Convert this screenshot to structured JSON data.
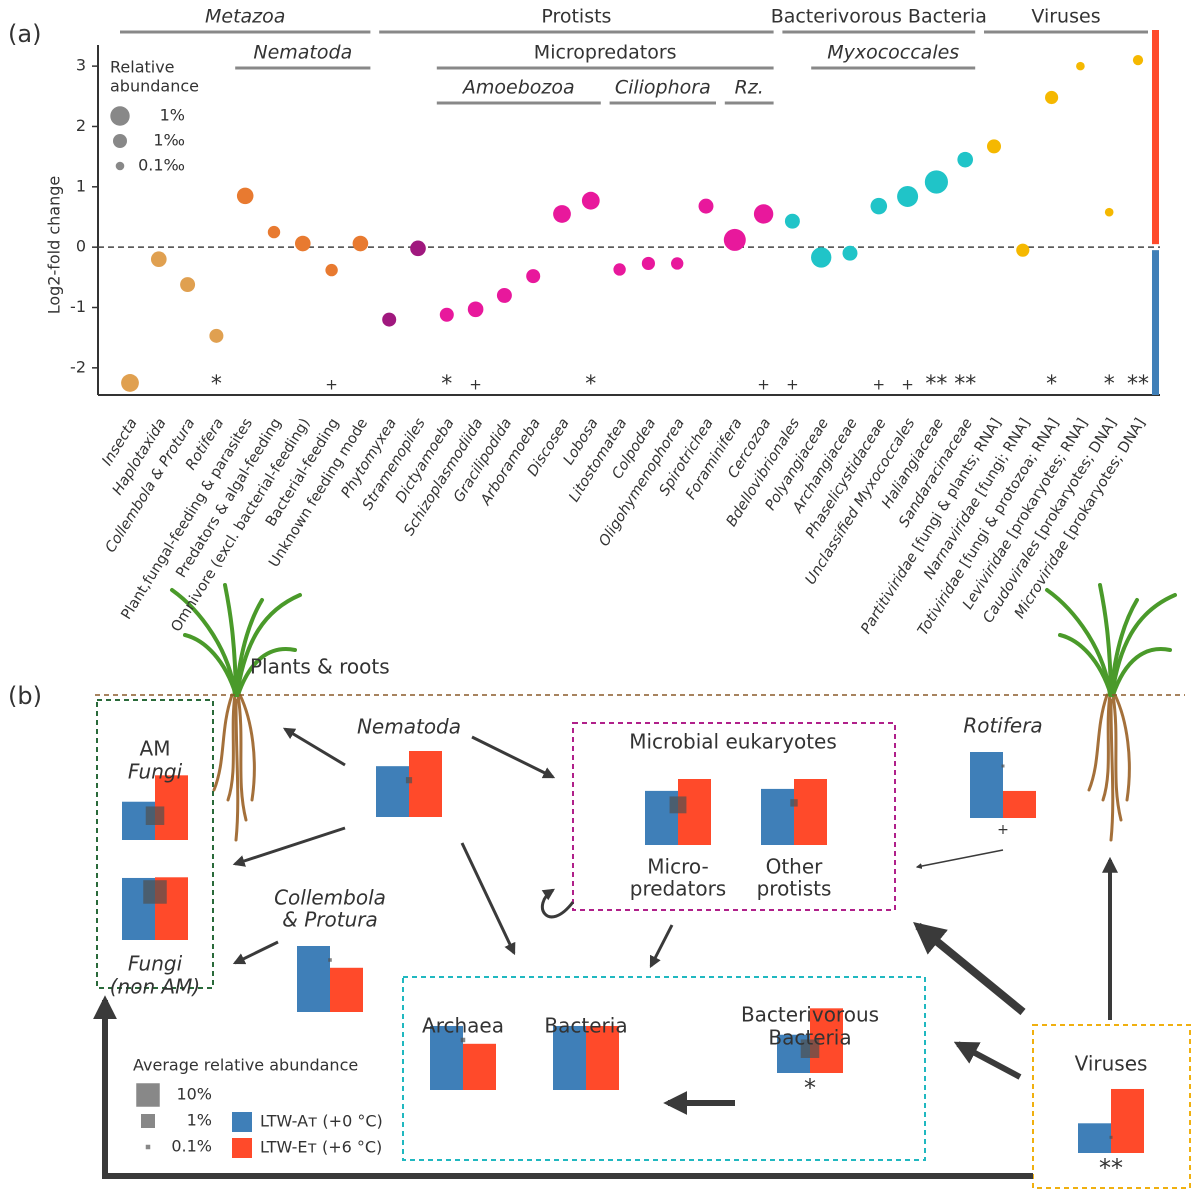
{
  "chart_data": {
    "type": "bubble",
    "panel_label": "(a)",
    "y_label": "Log2-fold change",
    "categories": [
      "Insecta",
      "Haplotaxida",
      "Collembola & Protura",
      "Rotifera",
      "Plant,fungal-feeding & parasites",
      "Predators & algal-feeding",
      "Omnivore (excl. bacterial-feeding)",
      "Bacterial-feeding",
      "Unknown feeding mode",
      "Phytomyxea",
      "Stramenopiles",
      "Dictyamoeba",
      "Schizoplasmodiida",
      "Gracilipodida",
      "Arboramoeba",
      "Discosea",
      "Lobosa",
      "Litostomatea",
      "Colpodea",
      "Oligohymenophorea",
      "Spirotrichea",
      "Foraminifera",
      "Cercozoa",
      "Bdellovibrionales",
      "Polyangiaceae",
      "Archangiaceae",
      "Phaselicystidaceae",
      "Unclassified Myxococcales",
      "Haliangiaceae",
      "Sandaracinaceae",
      "Partitiviridae [fungi & plants; RNA]",
      "Narnaviridae [fungi; RNA]",
      "Totiviridae [fungi & protozoa; RNA]",
      "Leviviridae [prokaryotes; RNA]",
      "Caudovirales [prokaryotes; DNA]",
      "Microviridae [prokaryotes; DNA]"
    ],
    "italic": [
      true,
      true,
      true,
      true,
      false,
      false,
      false,
      false,
      false,
      true,
      true,
      true,
      true,
      true,
      true,
      true,
      true,
      true,
      true,
      true,
      true,
      true,
      true,
      true,
      true,
      true,
      true,
      true,
      true,
      true,
      true,
      true,
      true,
      true,
      true,
      true
    ],
    "values": [
      -2.25,
      -0.2,
      -0.62,
      -1.47,
      0.85,
      0.25,
      0.06,
      -0.38,
      0.06,
      -1.2,
      -0.02,
      -1.12,
      -1.03,
      -0.8,
      -0.48,
      0.55,
      0.77,
      -0.37,
      -0.27,
      -0.27,
      0.68,
      0.12,
      0.55,
      0.43,
      -0.17,
      -0.1,
      0.68,
      0.84,
      1.08,
      1.45,
      1.67,
      -0.05,
      2.48,
      3.0,
      0.58,
      3.1
    ],
    "sizes": [
      0.5,
      0.2,
      0.15,
      0.1,
      0.3,
      0.05,
      0.2,
      0.05,
      0.2,
      0.1,
      0.2,
      0.1,
      0.2,
      0.15,
      0.1,
      0.5,
      0.5,
      0.05,
      0.07,
      0.05,
      0.15,
      3,
      1,
      0.15,
      1.5,
      0.15,
      0.3,
      2,
      5,
      0.2,
      0.1,
      0.07,
      0.07,
      0.01,
      0.01,
      0.02
    ],
    "colors": [
      "#e0a050",
      "#e0a050",
      "#e0a050",
      "#e0a050",
      "#e87a30",
      "#e87a30",
      "#e87a30",
      "#e87a30",
      "#e87a30",
      "#a0187e",
      "#a0187e",
      "#e8189c",
      "#e8189c",
      "#e8189c",
      "#e8189c",
      "#e8189c",
      "#e8189c",
      "#e8189c",
      "#e8189c",
      "#e8189c",
      "#e8189c",
      "#e8189c",
      "#e8189c",
      "#20c4c8",
      "#20c4c8",
      "#20c4c8",
      "#20c4c8",
      "#20c4c8",
      "#20c4c8",
      "#20c4c8",
      "#f5b800",
      "#f5b800",
      "#f5b800",
      "#f5b800",
      "#f5b800",
      "#f5b800"
    ],
    "significance": [
      null,
      null,
      null,
      "*",
      null,
      null,
      null,
      "+",
      null,
      null,
      null,
      "*",
      "+",
      null,
      null,
      null,
      "*",
      null,
      null,
      null,
      null,
      null,
      "+",
      "+",
      null,
      null,
      "+",
      "+",
      "**",
      "**",
      null,
      null,
      "*",
      null,
      "*",
      "**"
    ],
    "ylim": [
      -2.45,
      3.35
    ],
    "yticks": [
      -2,
      -1,
      0,
      1,
      2,
      3
    ],
    "groups": [
      {
        "label": "Metazoa",
        "first": 0,
        "last": 8,
        "row": 0,
        "italic": true
      },
      {
        "label": "Protists",
        "first": 9,
        "last": 22,
        "row": 0,
        "italic": false
      },
      {
        "label": "Bacterivorous Bacteria",
        "first": 23,
        "last": 29,
        "row": 0,
        "italic": false
      },
      {
        "label": "Viruses",
        "first": 30,
        "last": 35,
        "row": 0,
        "italic": false
      },
      {
        "label": "Nematoda",
        "first": 4,
        "last": 8,
        "row": 1,
        "italic": true
      },
      {
        "label": "Micropredators",
        "first": 11,
        "last": 22,
        "row": 1,
        "italic": false
      },
      {
        "label": "Myxococcales",
        "first": 24,
        "last": 29,
        "row": 1,
        "italic": true
      },
      {
        "label": "Amoebozoa",
        "first": 11,
        "last": 16,
        "row": 2,
        "italic": true
      },
      {
        "label": "Ciliophora",
        "first": 17,
        "last": 20,
        "row": 2,
        "italic": true
      },
      {
        "label": "Rz.",
        "first": 21,
        "last": 22,
        "row": 2,
        "italic": true
      }
    ],
    "size_legend": {
      "title": [
        "Relative",
        "abundance"
      ],
      "entries": [
        {
          "value": 1,
          "label": "1%"
        },
        {
          "value": 0.1,
          "label": "1‰"
        },
        {
          "value": 0.01,
          "label": "0.1‰"
        }
      ]
    }
  },
  "diagram": {
    "panel_label": "(b)",
    "plants_label": "Plants & roots",
    "box_title": "Microbial eukaryotes",
    "nodes": [
      {
        "title": [
          "AM",
          "Fungi"
        ],
        "italic": [
          false,
          true
        ],
        "ambient": 58,
        "warmed": 98,
        "abundance": 3,
        "significance": null
      },
      {
        "title": [
          "Fungi",
          "(non AM)"
        ],
        "italic": [
          true,
          true
        ],
        "ambient": 94,
        "warmed": 95,
        "abundance": 10,
        "significance": null
      },
      {
        "title": [
          "Nematoda"
        ],
        "italic": [
          true
        ],
        "ambient": 77,
        "warmed": 100,
        "abundance": 0.15,
        "significance": null
      },
      {
        "title": [
          "Micro-",
          "predators"
        ],
        "italic": [
          false,
          false
        ],
        "ambient": 82,
        "warmed": 100,
        "abundance": 2,
        "significance": null
      },
      {
        "title": [
          "Other",
          "protists"
        ],
        "italic": [
          false,
          false
        ],
        "ambient": 85,
        "warmed": 100,
        "abundance": 0.2,
        "significance": null
      },
      {
        "title": [
          "Rotifera"
        ],
        "italic": [
          true
        ],
        "ambient": 100,
        "warmed": 41,
        "abundance": 0.05,
        "significance": "+"
      },
      {
        "title": [
          "Collembola",
          "& Protura"
        ],
        "italic": [
          true,
          true
        ],
        "ambient": 100,
        "warmed": 67,
        "abundance": 0.08,
        "significance": null
      },
      {
        "title": [
          "Archaea"
        ],
        "italic": [
          false
        ],
        "ambient": 97,
        "warmed": 70,
        "abundance": 0.1,
        "significance": null
      },
      {
        "title": [
          "Bacteria"
        ],
        "italic": [
          false
        ],
        "ambient": 97,
        "warmed": 97,
        "abundance": null,
        "significance": null
      },
      {
        "title": [
          "Bacterivorous",
          "Bacteria"
        ],
        "italic": [
          false,
          false
        ],
        "ambient": 58,
        "warmed": 98,
        "abundance": 3,
        "significance": "*"
      },
      {
        "title": [
          "Viruses"
        ],
        "italic": [
          false
        ],
        "ambient": 45,
        "warmed": 97,
        "abundance": 0.05,
        "significance": "**"
      }
    ],
    "legend": {
      "title": "Average relative abundance",
      "sizes": [
        {
          "value": 10,
          "label": "10%"
        },
        {
          "value": 1,
          "label": "1%"
        },
        {
          "value": 0.1,
          "label": "0.1%"
        }
      ],
      "series": [
        {
          "name": "LTW-Aᴛ (+0 °C)",
          "color": "#3f7fb8"
        },
        {
          "name": "LTW-Eᴛ (+6 °C)",
          "color": "#ff4a2a"
        }
      ]
    }
  }
}
